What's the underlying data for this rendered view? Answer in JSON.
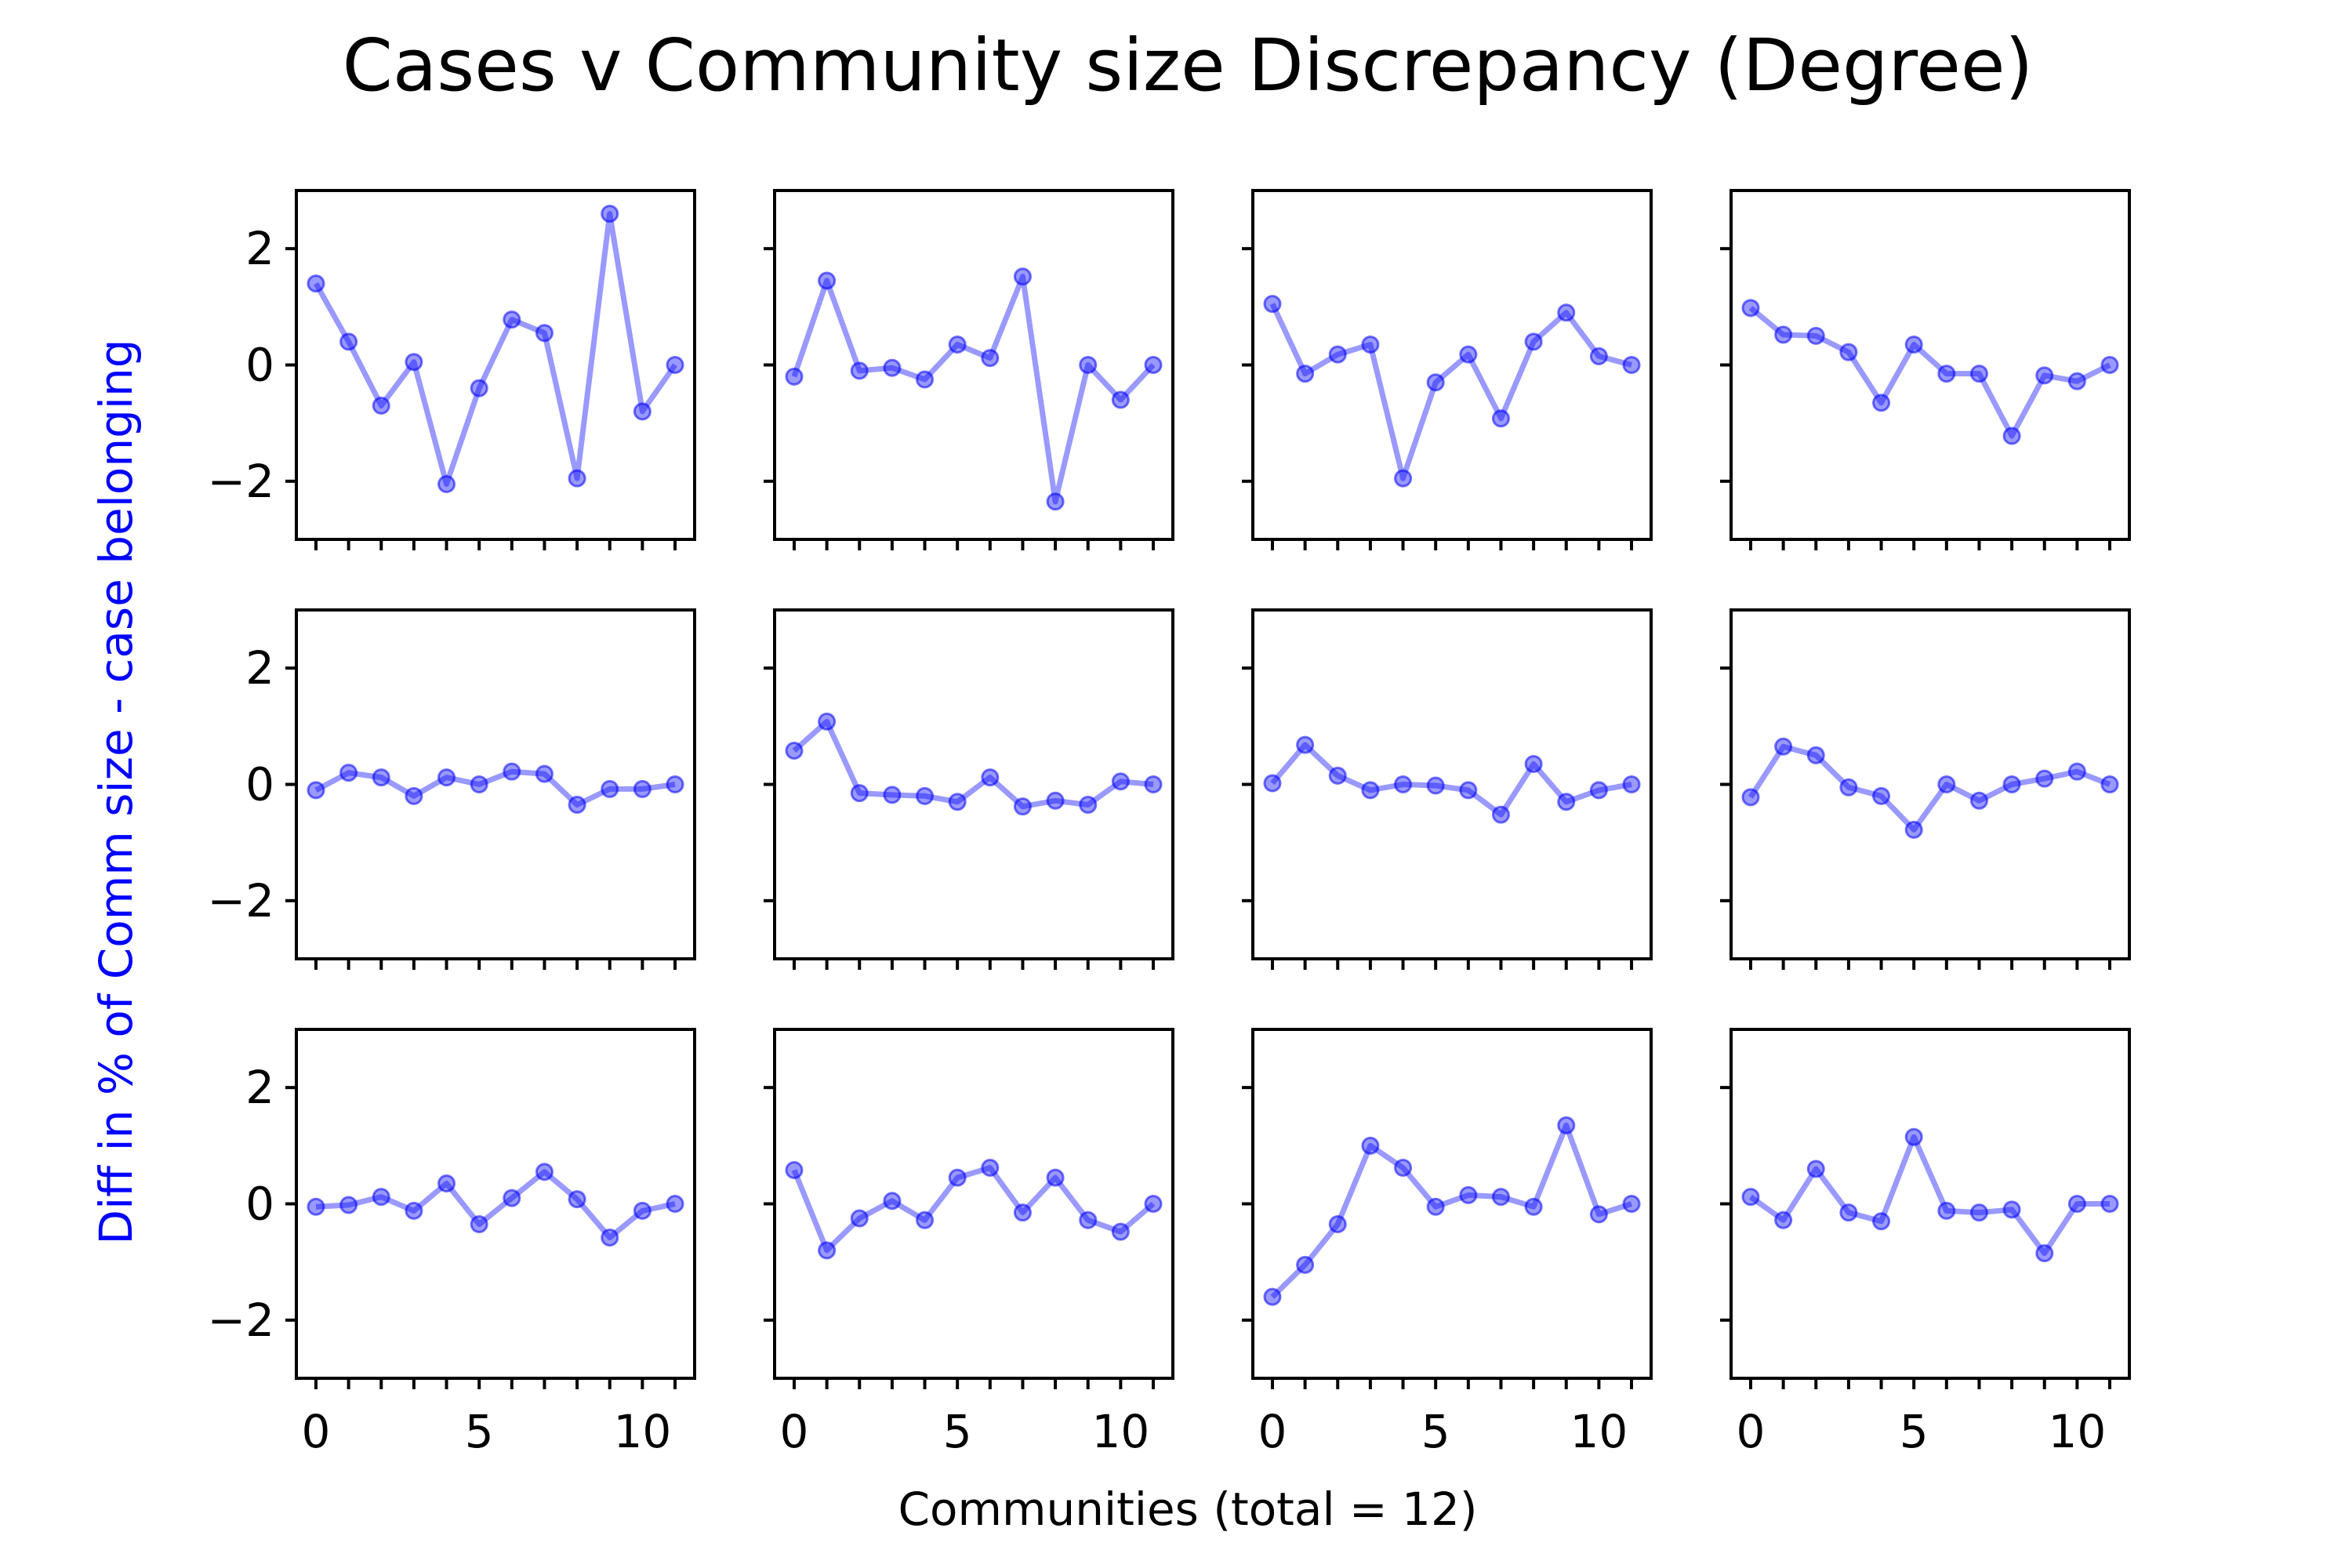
{
  "figure": {
    "title": "Cases v Community size Discrepancy (Degree)",
    "xlabel": "Communities (total = 12)",
    "ylabel": "Diff in % of Comm size - case belonging",
    "ylabel_color": "#0000ff",
    "series_color": "#0000ff",
    "series_alpha": 0.4
  },
  "chart_data": [
    {
      "type": "line",
      "x": [
        0,
        1,
        2,
        3,
        4,
        5,
        6,
        7,
        8,
        9,
        10,
        11
      ],
      "y": [
        1.4,
        0.4,
        -0.7,
        0.05,
        -2.05,
        -0.4,
        0.78,
        0.55,
        -1.95,
        2.6,
        -0.8,
        0.0
      ],
      "xlim": [
        -0.6,
        11.6
      ],
      "ylim": [
        -3,
        3
      ],
      "xticks": [
        0,
        5,
        10
      ],
      "yticks": [
        -2,
        0,
        2
      ]
    },
    {
      "type": "line",
      "x": [
        0,
        1,
        2,
        3,
        4,
        5,
        6,
        7,
        8,
        9,
        10,
        11
      ],
      "y": [
        -0.2,
        1.45,
        -0.1,
        -0.05,
        -0.25,
        0.35,
        0.12,
        1.52,
        -2.35,
        0.0,
        -0.6,
        0.0
      ],
      "xlim": [
        -0.6,
        11.6
      ],
      "ylim": [
        -3,
        3
      ],
      "xticks": [
        0,
        5,
        10
      ],
      "yticks": [
        -2,
        0,
        2
      ]
    },
    {
      "type": "line",
      "x": [
        0,
        1,
        2,
        3,
        4,
        5,
        6,
        7,
        8,
        9,
        10,
        11
      ],
      "y": [
        1.05,
        -0.15,
        0.18,
        0.35,
        -1.95,
        -0.3,
        0.18,
        -0.92,
        0.4,
        0.9,
        0.15,
        0.0
      ],
      "xlim": [
        -0.6,
        11.6
      ],
      "ylim": [
        -3,
        3
      ],
      "xticks": [
        0,
        5,
        10
      ],
      "yticks": [
        -2,
        0,
        2
      ]
    },
    {
      "type": "line",
      "x": [
        0,
        1,
        2,
        3,
        4,
        5,
        6,
        7,
        8,
        9,
        10,
        11
      ],
      "y": [
        0.98,
        0.52,
        0.5,
        0.22,
        -0.65,
        0.35,
        -0.15,
        -0.15,
        -1.22,
        -0.18,
        -0.28,
        0.0
      ],
      "xlim": [
        -0.6,
        11.6
      ],
      "ylim": [
        -3,
        3
      ],
      "xticks": [
        0,
        5,
        10
      ],
      "yticks": [
        -2,
        0,
        2
      ]
    },
    {
      "type": "line",
      "x": [
        0,
        1,
        2,
        3,
        4,
        5,
        6,
        7,
        8,
        9,
        10,
        11
      ],
      "y": [
        -0.1,
        0.2,
        0.12,
        -0.2,
        0.12,
        0.0,
        0.22,
        0.18,
        -0.35,
        -0.08,
        -0.08,
        0.0
      ],
      "xlim": [
        -0.6,
        11.6
      ],
      "ylim": [
        -3,
        3
      ],
      "xticks": [
        0,
        5,
        10
      ],
      "yticks": [
        -2,
        0,
        2
      ]
    },
    {
      "type": "line",
      "x": [
        0,
        1,
        2,
        3,
        4,
        5,
        6,
        7,
        8,
        9,
        10,
        11
      ],
      "y": [
        0.58,
        1.08,
        -0.15,
        -0.18,
        -0.2,
        -0.3,
        0.12,
        -0.38,
        -0.28,
        -0.35,
        0.05,
        0.0
      ],
      "xlim": [
        -0.6,
        11.6
      ],
      "ylim": [
        -3,
        3
      ],
      "xticks": [
        0,
        5,
        10
      ],
      "yticks": [
        -2,
        0,
        2
      ]
    },
    {
      "type": "line",
      "x": [
        0,
        1,
        2,
        3,
        4,
        5,
        6,
        7,
        8,
        9,
        10,
        11
      ],
      "y": [
        0.02,
        0.68,
        0.15,
        -0.1,
        0.0,
        -0.02,
        -0.1,
        -0.52,
        0.35,
        -0.3,
        -0.1,
        0.0
      ],
      "xlim": [
        -0.6,
        11.6
      ],
      "ylim": [
        -3,
        3
      ],
      "xticks": [
        0,
        5,
        10
      ],
      "yticks": [
        -2,
        0,
        2
      ]
    },
    {
      "type": "line",
      "x": [
        0,
        1,
        2,
        3,
        4,
        5,
        6,
        7,
        8,
        9,
        10,
        11
      ],
      "y": [
        -0.22,
        0.65,
        0.5,
        -0.05,
        -0.2,
        -0.78,
        0.0,
        -0.28,
        0.0,
        0.1,
        0.22,
        0.0
      ],
      "xlim": [
        -0.6,
        11.6
      ],
      "ylim": [
        -3,
        3
      ],
      "xticks": [
        0,
        5,
        10
      ],
      "yticks": [
        -2,
        0,
        2
      ]
    },
    {
      "type": "line",
      "x": [
        0,
        1,
        2,
        3,
        4,
        5,
        6,
        7,
        8,
        9,
        10,
        11
      ],
      "y": [
        -0.05,
        -0.02,
        0.12,
        -0.12,
        0.35,
        -0.35,
        0.1,
        0.55,
        0.08,
        -0.58,
        -0.12,
        0.0
      ],
      "xlim": [
        -0.6,
        11.6
      ],
      "ylim": [
        -3,
        3
      ],
      "xticks": [
        0,
        5,
        10
      ],
      "yticks": [
        -2,
        0,
        2
      ]
    },
    {
      "type": "line",
      "x": [
        0,
        1,
        2,
        3,
        4,
        5,
        6,
        7,
        8,
        9,
        10,
        11
      ],
      "y": [
        0.58,
        -0.8,
        -0.25,
        0.05,
        -0.28,
        0.45,
        0.62,
        -0.15,
        0.45,
        -0.28,
        -0.48,
        0.0
      ],
      "xlim": [
        -0.6,
        11.6
      ],
      "ylim": [
        -3,
        3
      ],
      "xticks": [
        0,
        5,
        10
      ],
      "yticks": [
        -2,
        0,
        2
      ]
    },
    {
      "type": "line",
      "x": [
        0,
        1,
        2,
        3,
        4,
        5,
        6,
        7,
        8,
        9,
        10,
        11
      ],
      "y": [
        -1.6,
        -1.05,
        -0.35,
        1.0,
        0.62,
        -0.05,
        0.15,
        0.12,
        -0.05,
        1.35,
        -0.18,
        0.0
      ],
      "xlim": [
        -0.6,
        11.6
      ],
      "ylim": [
        -3,
        3
      ],
      "xticks": [
        0,
        5,
        10
      ],
      "yticks": [
        -2,
        0,
        2
      ]
    },
    {
      "type": "line",
      "x": [
        0,
        1,
        2,
        3,
        4,
        5,
        6,
        7,
        8,
        9,
        10,
        11
      ],
      "y": [
        0.12,
        -0.28,
        0.6,
        -0.15,
        -0.3,
        1.15,
        -0.12,
        -0.15,
        -0.1,
        -0.85,
        0.0,
        0.0
      ],
      "xlim": [
        -0.6,
        11.6
      ],
      "ylim": [
        -3,
        3
      ],
      "xticks": [
        0,
        5,
        10
      ],
      "yticks": [
        -2,
        0,
        2
      ]
    }
  ]
}
